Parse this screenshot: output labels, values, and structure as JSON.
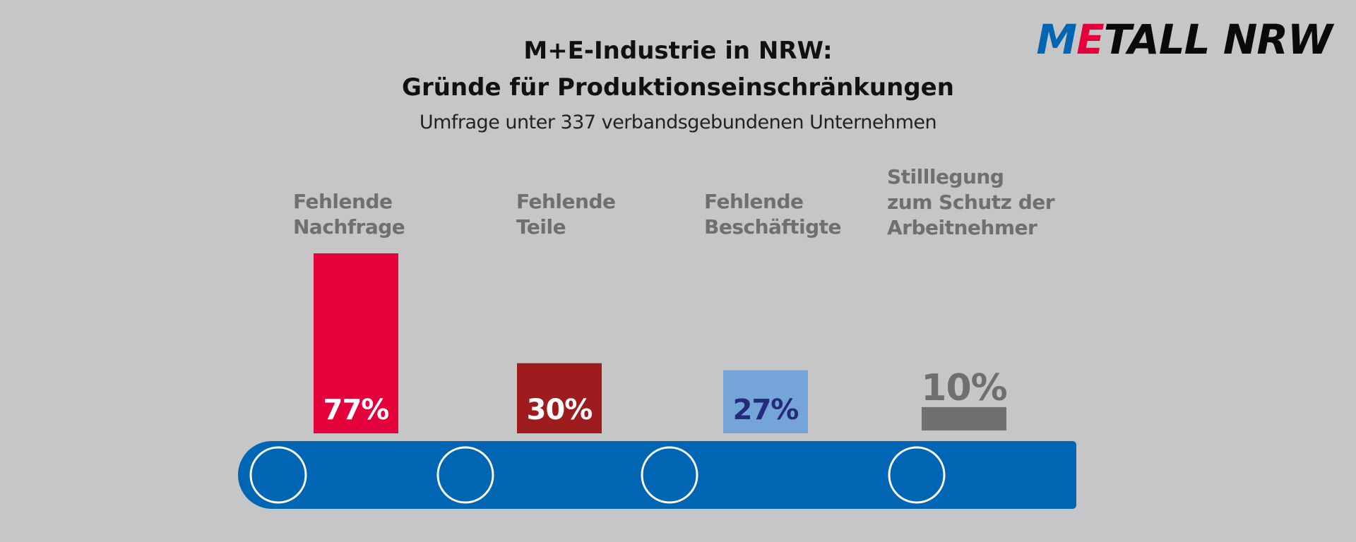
{
  "logo": {
    "prefix_blue": "M",
    "prefix_red": "E",
    "rest": "TALL NRW"
  },
  "title_line1": "M+E-Industrie in NRW:",
  "title_line2": "Gründe für Produktionseinschränkungen",
  "subtitle": "Umfrage unter 337 verbandsgebundenen Unternehmen",
  "colors": {
    "background": "#c6c6c6",
    "conveyor": "#0065b3",
    "bar1": "#e4003a",
    "bar2": "#9e1b1e",
    "bar3": "#74a4d8",
    "bar4": "#707070",
    "label_white": "#ffffff",
    "label_navy": "#262a7a",
    "label_gray": "#6f6f6f"
  },
  "chart_data": {
    "type": "bar",
    "categories": [
      "Fehlende\nNachfrage",
      "Fehlende\nTeile",
      "Fehlende\nBeschäftigte",
      "Stilllegung\nzum Schutz der\nArbeitnehmer"
    ],
    "values": [
      77,
      30,
      27,
      10
    ],
    "value_labels": [
      "77%",
      "30%",
      "27%",
      "10%"
    ],
    "unit": "%",
    "title": "M+E-Industrie in NRW: Gründe für Produktionseinschränkungen",
    "subtitle": "Umfrage unter 337 verbandsgebundenen Unternehmen",
    "xlabel": "",
    "ylabel": "",
    "ylim": [
      0,
      100
    ],
    "grid": false,
    "legend": "none"
  }
}
